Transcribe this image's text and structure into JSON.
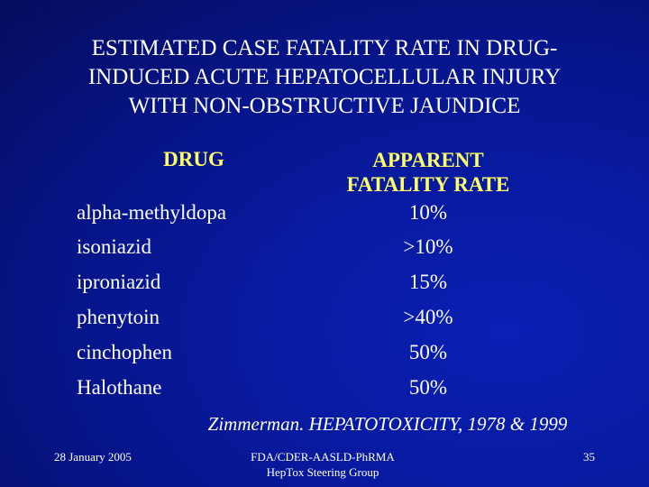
{
  "title": "ESTIMATED CASE FATALITY RATE IN DRUG-\nINDUCED ACUTE HEPATOCELLULAR INJURY\nWITH NON-OBSTRUCTIVE JAUNDICE",
  "table": {
    "header_drug": "DRUG",
    "header_rate": "APPARENT\nFATALITY RATE",
    "rows": [
      {
        "drug": "alpha-methyldopa",
        "rate": "10%"
      },
      {
        "drug": "isoniazid",
        "rate": ">10%"
      },
      {
        "drug": "iproniazid",
        "rate": "15%"
      },
      {
        "drug": "phenytoin",
        "rate": ">40%"
      },
      {
        "drug": "cinchophen",
        "rate": "50%"
      },
      {
        "drug": "Halothane",
        "rate": "50%"
      }
    ]
  },
  "source": "Zimmerman. HEPATOTOXICITY, 1978 & 1999",
  "footer": {
    "date": "28 January 2005",
    "organization": "FDA/CDER-AASLD-PhRMA\nHepTox Steering Group",
    "page": "35"
  },
  "colors": {
    "background": "#061486",
    "header": "#ffff66",
    "text": "#ffffff"
  }
}
